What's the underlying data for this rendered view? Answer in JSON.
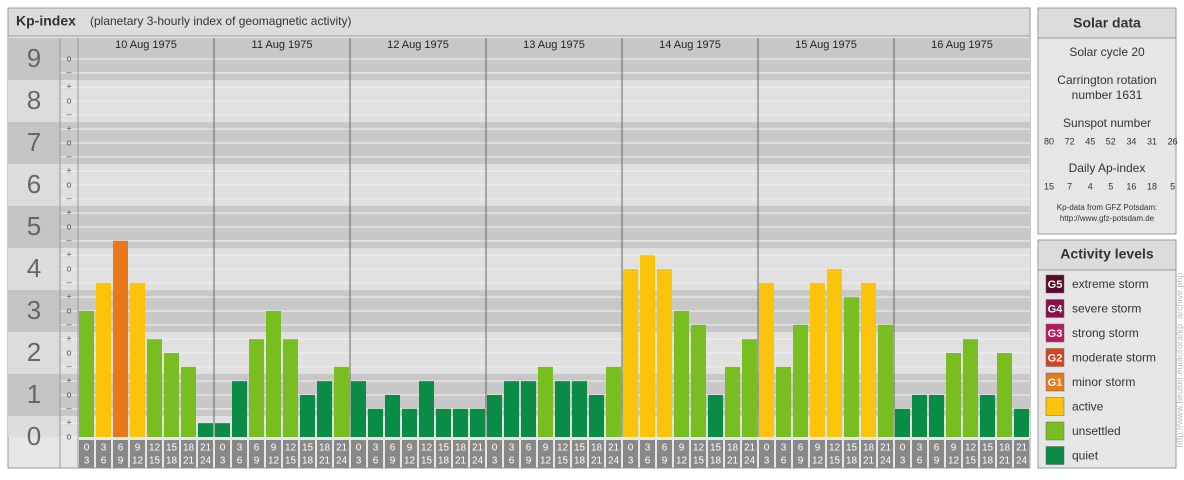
{
  "chart_data": {
    "type": "bar",
    "title": "Kp-index",
    "subtitle": "(planetary 3-hourly index of geomagnetic activity)",
    "ylim": [
      0,
      9.5
    ],
    "yticks": [
      0,
      1,
      2,
      3,
      4,
      5,
      6,
      7,
      8,
      9
    ],
    "minor_ticks": [
      {
        "value": 0,
        "label": "o"
      },
      {
        "value": 0.33,
        "label": "+"
      },
      {
        "value": 0.67,
        "label": "–"
      },
      {
        "value": 1,
        "label": "o"
      },
      {
        "value": 1.33,
        "label": "+"
      },
      {
        "value": 1.67,
        "label": "–"
      },
      {
        "value": 2,
        "label": "o"
      },
      {
        "value": 2.33,
        "label": "+"
      },
      {
        "value": 2.67,
        "label": "–"
      },
      {
        "value": 3,
        "label": "o"
      },
      {
        "value": 3.33,
        "label": "+"
      },
      {
        "value": 3.67,
        "label": "–"
      },
      {
        "value": 4,
        "label": "o"
      },
      {
        "value": 4.33,
        "label": "+"
      },
      {
        "value": 4.67,
        "label": "–"
      },
      {
        "value": 5,
        "label": "o"
      },
      {
        "value": 5.33,
        "label": "+"
      },
      {
        "value": 5.67,
        "label": "–"
      },
      {
        "value": 6,
        "label": "o"
      },
      {
        "value": 6.33,
        "label": "+"
      },
      {
        "value": 6.67,
        "label": "–"
      },
      {
        "value": 7,
        "label": "o"
      },
      {
        "value": 7.33,
        "label": "+"
      },
      {
        "value": 7.67,
        "label": "–"
      },
      {
        "value": 8,
        "label": "o"
      },
      {
        "value": 8.33,
        "label": "+"
      },
      {
        "value": 8.67,
        "label": "–"
      },
      {
        "value": 9,
        "label": "o"
      }
    ],
    "hour_labels": [
      "0",
      "3",
      "6",
      "9",
      "12",
      "15",
      "18",
      "21",
      "24"
    ],
    "days": [
      {
        "date": "10 Aug 1975",
        "values": [
          3,
          3.67,
          4.67,
          3.67,
          2.33,
          2,
          1.67,
          0.33
        ],
        "colors": [
          "#78be20",
          "#fbc40a",
          "#e8781a",
          "#fbc40a",
          "#78be20",
          "#78be20",
          "#78be20",
          "#0a8c46"
        ]
      },
      {
        "date": "11 Aug 1975",
        "values": [
          0.33,
          1.33,
          2.33,
          3,
          2.33,
          1,
          1.33,
          1.67
        ],
        "colors": [
          "#0a8c46",
          "#0a8c46",
          "#78be20",
          "#78be20",
          "#78be20",
          "#0a8c46",
          "#0a8c46",
          "#78be20"
        ]
      },
      {
        "date": "12 Aug 1975",
        "values": [
          1.33,
          0.67,
          1,
          0.67,
          1.33,
          0.67,
          0.67,
          0.67
        ],
        "colors": [
          "#0a8c46",
          "#0a8c46",
          "#0a8c46",
          "#0a8c46",
          "#0a8c46",
          "#0a8c46",
          "#0a8c46",
          "#0a8c46"
        ]
      },
      {
        "date": "13 Aug 1975",
        "values": [
          1,
          1.33,
          1.33,
          1.67,
          1.33,
          1.33,
          1,
          1.67
        ],
        "colors": [
          "#0a8c46",
          "#0a8c46",
          "#0a8c46",
          "#78be20",
          "#0a8c46",
          "#0a8c46",
          "#0a8c46",
          "#78be20"
        ]
      },
      {
        "date": "14 Aug 1975",
        "values": [
          4,
          4.33,
          4,
          3,
          2.67,
          1,
          1.67,
          2.33
        ],
        "colors": [
          "#fbc40a",
          "#fbc40a",
          "#fbc40a",
          "#78be20",
          "#78be20",
          "#0a8c46",
          "#78be20",
          "#78be20"
        ]
      },
      {
        "date": "15 Aug 1975",
        "values": [
          3.67,
          1.67,
          2.67,
          3.67,
          4,
          3.33,
          3.67,
          2.67
        ],
        "colors": [
          "#fbc40a",
          "#78be20",
          "#78be20",
          "#fbc40a",
          "#fbc40a",
          "#78be20",
          "#fbc40a",
          "#78be20"
        ]
      },
      {
        "date": "16 Aug 1975",
        "values": [
          0.67,
          1,
          1,
          2,
          2.33,
          1,
          2,
          0.67
        ],
        "colors": [
          "#0a8c46",
          "#0a8c46",
          "#0a8c46",
          "#78be20",
          "#78be20",
          "#0a8c46",
          "#78be20",
          "#0a8c46"
        ]
      }
    ]
  },
  "solar_data": {
    "title": "Solar data",
    "cycle": "Solar cycle 20",
    "carrington": [
      "Carrington rotation",
      "number 1631"
    ],
    "sunspot_label": "Sunspot number",
    "sunspot": [
      80,
      72,
      45,
      52,
      34,
      31,
      26
    ],
    "ap_label": "Daily Ap-index",
    "ap": [
      15,
      7,
      4,
      5,
      16,
      18,
      5
    ],
    "source": "Kp-data from GFZ Potsdam:",
    "url": "http://www.gfz-potsdam.de"
  },
  "activity_levels": {
    "title": "Activity levels",
    "levels": [
      {
        "code": "G5",
        "name": "extreme storm",
        "color": "#5a0a2a"
      },
      {
        "code": "G4",
        "name": "severe storm",
        "color": "#86104a"
      },
      {
        "code": "G3",
        "name": "strong storm",
        "color": "#b8185e"
      },
      {
        "code": "G2",
        "name": "moderate storm",
        "color": "#dc4020"
      },
      {
        "code": "G1",
        "name": "minor storm",
        "color": "#e8781a"
      },
      {
        "name": "active",
        "color": "#fbc40a"
      },
      {
        "name": "unsettled",
        "color": "#78be20"
      },
      {
        "name": "quiet",
        "color": "#0a8c46"
      }
    ]
  },
  "side_url": "http://www.tieuser.eu/aurora/kp_archive.php"
}
